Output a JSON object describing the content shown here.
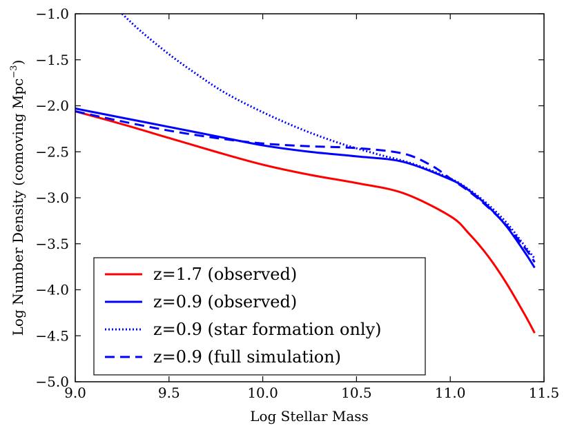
{
  "chart_data": {
    "type": "line",
    "title": "",
    "xlabel": "Log Stellar Mass",
    "ylabel": "Log Number Density (comoving Mpc",
    "ylabel_sup": "−3",
    "ylabel_close": ")",
    "xlim": [
      9.0,
      11.5
    ],
    "ylim": [
      -5.0,
      -1.0
    ],
    "xticks": [
      9.0,
      9.5,
      10.0,
      10.5,
      11.0,
      11.5
    ],
    "xtick_labels": [
      "9.0",
      "9.5",
      "10.0",
      "10.5",
      "11.0",
      "11.5"
    ],
    "yticks": [
      -1.0,
      -1.5,
      -2.0,
      -2.5,
      -3.0,
      -3.5,
      -4.0,
      -4.5,
      -5.0
    ],
    "ytick_labels": [
      "−1.0",
      "−1.5",
      "−2.0",
      "−2.5",
      "−3.0",
      "−3.5",
      "−4.0",
      "−4.5",
      "−5.0"
    ],
    "grid": false,
    "legend_position": "lower-left",
    "series": [
      {
        "name": "z=1.7 (observed)",
        "color": "#ff0000",
        "style": "solid",
        "x": [
          9.0,
          9.25,
          9.5,
          9.75,
          10.0,
          10.25,
          10.5,
          10.75,
          11.0,
          11.1,
          11.2,
          11.3,
          11.4,
          11.45
        ],
        "y": [
          -2.06,
          -2.2,
          -2.35,
          -2.5,
          -2.64,
          -2.75,
          -2.84,
          -2.95,
          -3.2,
          -3.39,
          -3.63,
          -3.93,
          -4.28,
          -4.47
        ]
      },
      {
        "name": "z=0.9 (observed)",
        "color": "#0000ff",
        "style": "solid",
        "x": [
          9.0,
          9.25,
          9.5,
          9.75,
          10.0,
          10.25,
          10.5,
          10.75,
          11.0,
          11.1,
          11.2,
          11.3,
          11.4,
          11.45
        ],
        "y": [
          -2.03,
          -2.13,
          -2.23,
          -2.33,
          -2.43,
          -2.5,
          -2.55,
          -2.61,
          -2.8,
          -2.92,
          -3.09,
          -3.31,
          -3.6,
          -3.76
        ]
      },
      {
        "name": "z=0.9 (star formation only)",
        "color": "#0000ff",
        "style": "dotted",
        "x": [
          9.25,
          9.35,
          9.5,
          9.65,
          9.8,
          10.0,
          10.2,
          10.4,
          10.6,
          10.8,
          11.0,
          11.1,
          11.2,
          11.3,
          11.4,
          11.45
        ],
        "y": [
          -1.0,
          -1.19,
          -1.44,
          -1.66,
          -1.86,
          -2.07,
          -2.25,
          -2.4,
          -2.52,
          -2.63,
          -2.79,
          -2.91,
          -3.07,
          -3.27,
          -3.53,
          -3.66
        ]
      },
      {
        "name": "z=0.9 (full simulation)",
        "color": "#0000ff",
        "style": "dashed",
        "x": [
          9.0,
          9.25,
          9.5,
          9.75,
          10.0,
          10.25,
          10.5,
          10.75,
          10.9,
          11.0,
          11.1,
          11.2,
          11.3,
          11.4,
          11.45
        ],
        "y": [
          -2.06,
          -2.17,
          -2.27,
          -2.35,
          -2.41,
          -2.44,
          -2.46,
          -2.52,
          -2.65,
          -2.79,
          -2.93,
          -3.1,
          -3.3,
          -3.55,
          -3.7
        ]
      }
    ]
  }
}
